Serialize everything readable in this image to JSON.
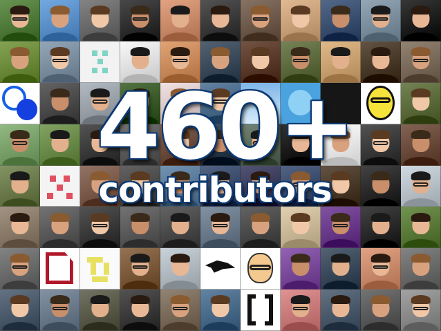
{
  "headline": {
    "number": "460+",
    "label": "contributors"
  },
  "colors": {
    "text": "#ffffff",
    "outline": "#0e3a73"
  },
  "tiles": [
    [
      "#4f7a3a",
      "#5b8fc8",
      "#6a6a6a",
      "#2f2f2f",
      "#c98a6a",
      "#3a3a3a",
      "#6e5a4a",
      "#c8a07a",
      "#3b5070",
      "#7a8e9e",
      "#1e1e1e"
    ],
    [
      "#6b8a3a",
      "#7a8ea0",
      "#pattern-teal",
      "#e0e0e0",
      "#c88a5a",
      "#3a4a5a",
      "#5a3a2a",
      "#5c6a3e",
      "#c9a070",
      "#4a3a2a",
      "#7a6a5a"
    ],
    [
      "#circles-blue",
      "#4a4a4a",
      "#9aa0a8",
      "#3a5a2a",
      "#d8c8c8",
      "#4a6a8a",
      "#sky",
      "#twitter-bird",
      "#dark",
      "#smiley",
      "#5a6a3a"
    ],
    [
      "#7aa06a",
      "#6a8a4a",
      "#3a3a3a",
      "#5a5a5a",
      "#6a4a3a",
      "#2a3a4a",
      "#5a6a5a",
      "#1a1a1a",
      "#e8e8e8",
      "#3a3a3a",
      "#6a4a3a"
    ],
    [
      "#6a7a4a",
      "#pattern-pink",
      "#7a5a4a",
      "#4a4a4a",
      "#5a7a9a",
      "#3a4a6a",
      "#3a3a5a",
      "#3a4a6a",
      "#4a3a2a",
      "#2a2a2a",
      "#b8c0c8"
    ],
    [
      "#8a7a6a",
      "#5a5a5a",
      "#3a3a3a",
      "#5a5a5a",
      "#4a4a4a",
      "#6a7a8a",
      "#4a4a4a",
      "#c8b898",
      "#6a3a8a",
      "#2a2a2a",
      "#5a7a3a"
    ],
    [
      "#6a6a6a",
      "#doc-icon",
      "#pattern-yellow",
      "#7a5a3a",
      "#b0b8c0",
      "#bird-tile",
      "#cartoon",
      "#7a4a9a",
      "#3a4a5a",
      "#c88a6a",
      "#6a6a6a"
    ],
    [
      "#4a5a6a",
      "#6a7a8a",
      "#5a5a4a",
      "#3a3a3a",
      "#7a6a5a",
      "#4a6a8a",
      "#bracket-icon",
      "#c87a7a",
      "#4a5a6a",
      "#5a5a5a",
      "#8a8a8a"
    ]
  ]
}
